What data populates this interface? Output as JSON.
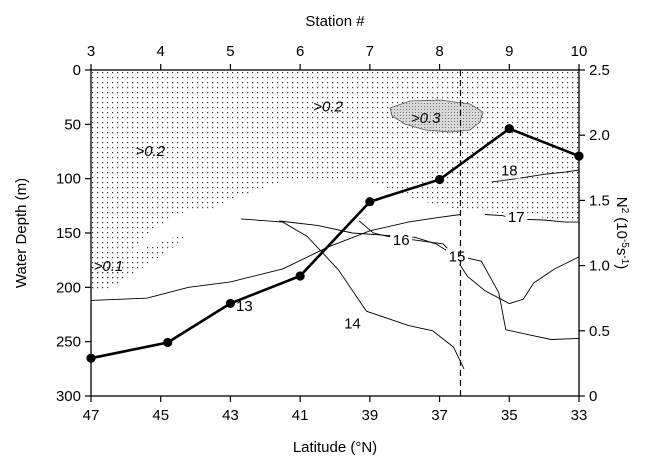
{
  "chart_data": {
    "type": "line",
    "top_axis": {
      "title": "Station #",
      "ticks": [
        "3",
        "4",
        "5",
        "6",
        "7",
        "8",
        "9",
        "10"
      ]
    },
    "x": {
      "label": "Latitude (°N)",
      "lim": [
        47,
        33
      ],
      "ticks": [
        47,
        45,
        43,
        41,
        39,
        37,
        35,
        33
      ]
    },
    "y_left": {
      "label": "Water Depth (m)",
      "lim": [
        0,
        300
      ],
      "inverted": true,
      "ticks": [
        0,
        50,
        100,
        150,
        200,
        250,
        300
      ]
    },
    "y_right": {
      "label_main": "N",
      "label_sup": "2",
      "label_rest": " (10",
      "label_sup2": "-5",
      "label_end": "s",
      "label_sup3": "-1",
      "label_close": ")",
      "lim": [
        0,
        2.5
      ],
      "ticks": [
        "0",
        "0.5",
        "1.0",
        "1.5",
        "2.0",
        "2.5"
      ]
    },
    "series": [
      {
        "axis": "right",
        "x": [
          47,
          44.8,
          43,
          41,
          39,
          37,
          35,
          33
        ],
        "y": [
          0.29,
          0.41,
          0.71,
          0.92,
          1.49,
          1.66,
          2.05,
          1.84
        ]
      }
    ],
    "reference_line": {
      "x": 36.4,
      "style": "dashed"
    },
    "contours": [
      {
        "label": "13",
        "label_at": [
          42.6,
          222
        ],
        "points": [
          [
            47,
            212
          ],
          [
            45.4,
            210
          ],
          [
            44.2,
            200
          ],
          [
            43,
            195
          ],
          [
            41.5,
            183
          ],
          [
            40.2,
            163
          ],
          [
            39,
            148
          ],
          [
            37.9,
            140
          ],
          [
            37.1,
            136
          ],
          [
            36.4,
            133
          ]
        ]
      },
      {
        "label": "14",
        "label_at": [
          39.5,
          238
        ],
        "points": [
          [
            42.7,
            137
          ],
          [
            41.5,
            140
          ],
          [
            40.8,
            153
          ],
          [
            39.9,
            184
          ],
          [
            39.1,
            222
          ],
          [
            37.9,
            235
          ],
          [
            37.2,
            240
          ],
          [
            36.6,
            255
          ],
          [
            36.3,
            275
          ]
        ]
      },
      {
        "label": "15",
        "label_at": [
          36.5,
          176
        ],
        "points": [
          [
            41.6,
            139
          ],
          [
            40.5,
            143
          ],
          [
            39.5,
            150
          ],
          [
            38.6,
            152
          ],
          [
            37.7,
            154
          ],
          [
            37.1,
            160
          ],
          [
            36.6,
            170
          ],
          [
            36.2,
            190
          ],
          [
            35.7,
            203
          ],
          [
            35,
            215
          ],
          [
            34.6,
            211
          ],
          [
            34.3,
            196
          ],
          [
            33.7,
            183
          ],
          [
            33,
            172
          ]
        ]
      },
      {
        "label": "16",
        "label_at": [
          38.1,
          161
        ],
        "points": [
          [
            39.3,
            139
          ],
          [
            38.9,
            150
          ],
          [
            38.5,
            153
          ],
          [
            37.6,
            157
          ],
          [
            36.9,
            160
          ],
          [
            36.6,
            170
          ],
          [
            35.8,
            176
          ],
          [
            35.3,
            205
          ],
          [
            35.1,
            239
          ],
          [
            34.4,
            244
          ],
          [
            33.8,
            248
          ],
          [
            33,
            247
          ]
        ]
      },
      {
        "label": "17",
        "label_at": [
          34.8,
          140
        ],
        "points": [
          [
            35.7,
            133
          ],
          [
            35.2,
            134
          ],
          [
            34.9,
            137
          ],
          [
            34,
            138
          ],
          [
            33.4,
            140
          ],
          [
            33,
            140
          ]
        ]
      },
      {
        "label": "18",
        "label_at": [
          35.0,
          97
        ],
        "points": [
          [
            35.5,
            103
          ],
          [
            34.8,
            100
          ],
          [
            34.0,
            96
          ],
          [
            33.4,
            94
          ],
          [
            33,
            92
          ]
        ]
      }
    ],
    "dotted_regions": [
      {
        "label": ">0.2",
        "label_at": [
          45.3,
          79
        ]
      },
      {
        "label": ">0.2",
        "label_at": [
          40.2,
          38
        ]
      },
      {
        "label": ">0.3",
        "label_at": [
          37.4,
          49
        ]
      },
      {
        "label": ">0.1",
        "label_at": [
          46.5,
          185
        ]
      }
    ]
  }
}
